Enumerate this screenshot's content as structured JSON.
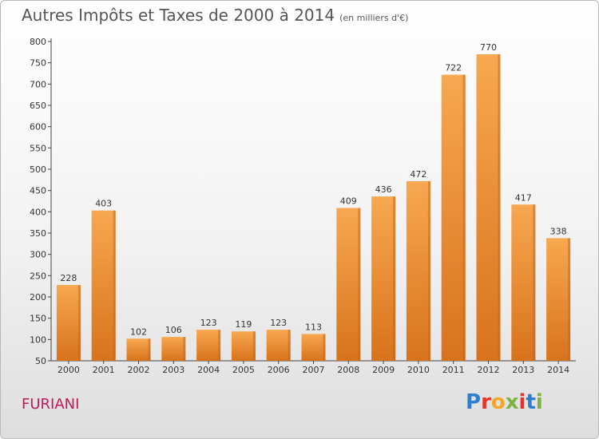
{
  "header": {
    "title": "Autres Impôts et Taxes de 2000 à 2014",
    "unit": "(en milliers d'€)"
  },
  "footer": {
    "town": "FURIANI",
    "logo_letters": [
      "P",
      "r",
      "o",
      "x",
      "i",
      "t",
      "i"
    ],
    "logo_colors": [
      "#2f7fd0",
      "#e5332a",
      "#f5a623",
      "#7cb342",
      "#e5332a",
      "#2f7fd0",
      "#7cb342"
    ]
  },
  "colors": {
    "bar_top": "#f7a850",
    "bar_bottom": "#d8731c",
    "bar_side": "#c4641a",
    "town": "#c2185b"
  },
  "chart_data": {
    "type": "bar",
    "categories": [
      "2000",
      "2001",
      "2002",
      "2003",
      "2004",
      "2005",
      "2006",
      "2007",
      "2008",
      "2009",
      "2010",
      "2011",
      "2012",
      "2013",
      "2014"
    ],
    "values": [
      228,
      403,
      102,
      106,
      123,
      119,
      123,
      113,
      409,
      436,
      472,
      722,
      770,
      417,
      338
    ],
    "title": "Autres Impôts et Taxes de 2000 à 2014",
    "subtitle": "(en milliers d'€)",
    "ylim": [
      50,
      800
    ],
    "yticks": [
      50,
      100,
      150,
      200,
      250,
      300,
      350,
      400,
      450,
      500,
      550,
      600,
      650,
      700,
      750,
      800
    ],
    "grid": false,
    "legend": "none"
  }
}
